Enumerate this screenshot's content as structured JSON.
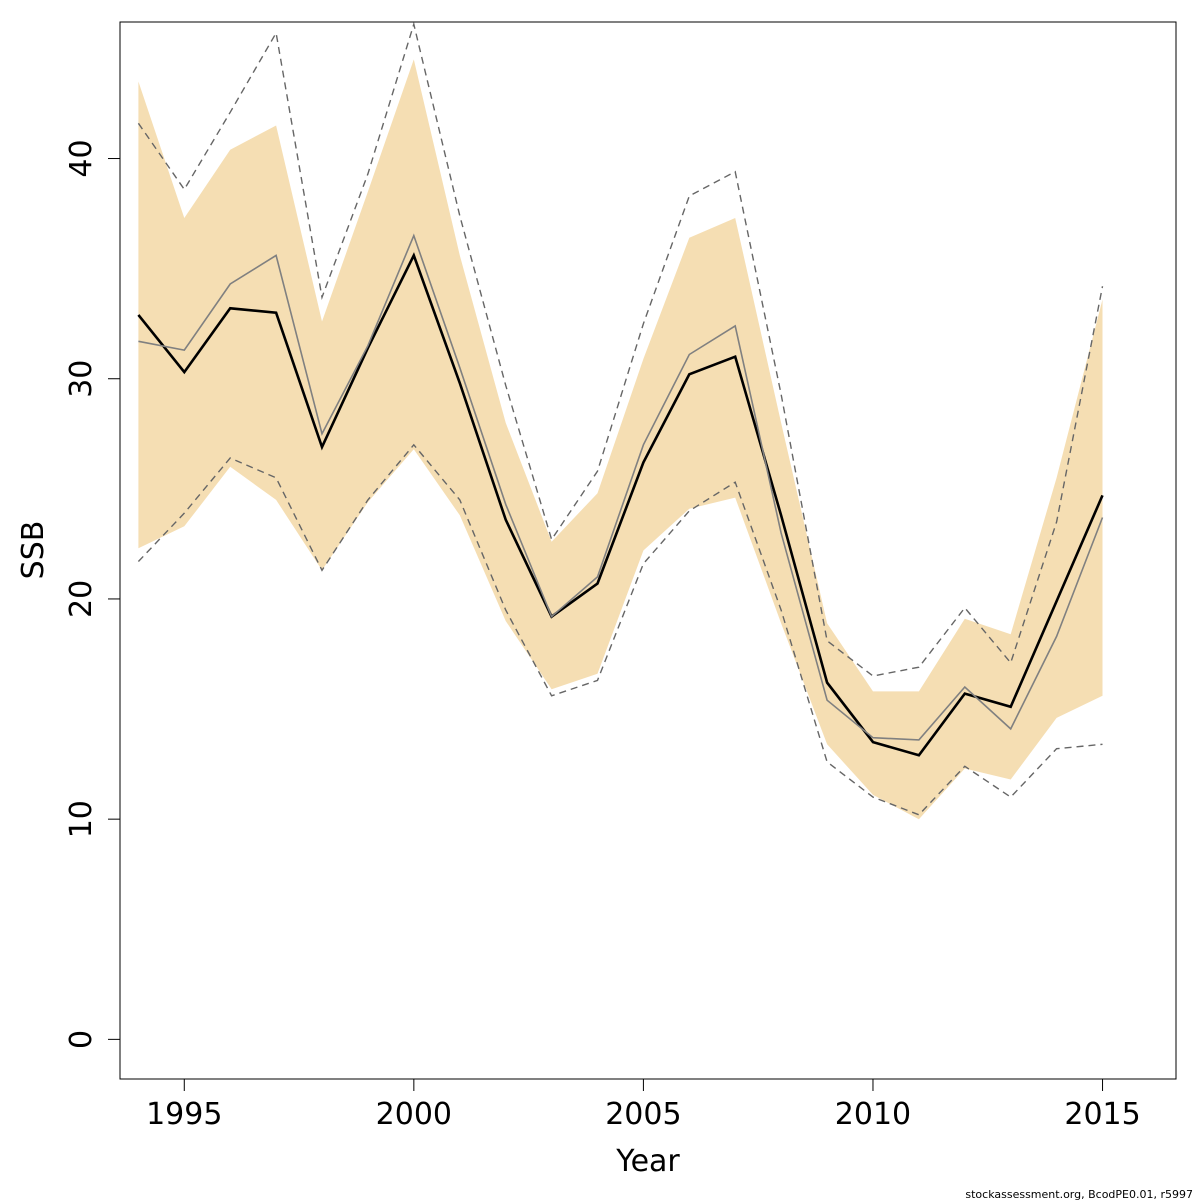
{
  "chart_data": {
    "type": "line",
    "title": "",
    "xlabel": "Year",
    "ylabel": "SSB",
    "xlim": [
      1993.6,
      2016.6
    ],
    "ylim": [
      -1.8,
      46.2
    ],
    "x_ticks": [
      1995,
      2000,
      2005,
      2010,
      2015
    ],
    "y_ticks": [
      0,
      10,
      20,
      30,
      40
    ],
    "grid": false,
    "legend": "none",
    "colors": {
      "band": "#F5DEB3",
      "main_line": "#000000",
      "secondary_line": "#808080",
      "dashed_line": "#666666"
    },
    "x": [
      1994,
      1995,
      1996,
      1997,
      1998,
      1999,
      2000,
      2001,
      2002,
      2003,
      2004,
      2005,
      2006,
      2007,
      2008,
      2009,
      2010,
      2011,
      2012,
      2013,
      2014,
      2015
    ],
    "band": {
      "upper": [
        43.5,
        37.3,
        40.4,
        41.5,
        32.6,
        38.5,
        44.5,
        35.6,
        28.0,
        22.6,
        24.8,
        30.9,
        36.4,
        37.3,
        28.0,
        18.9,
        15.8,
        15.8,
        19.1,
        18.4,
        25.5,
        33.6
      ],
      "lower": [
        22.3,
        23.3,
        26.0,
        24.5,
        21.3,
        24.4,
        26.8,
        23.8,
        19.0,
        15.9,
        16.6,
        22.2,
        24.1,
        24.6,
        18.9,
        13.4,
        11.1,
        10.0,
        12.3,
        11.8,
        14.6,
        15.6
      ]
    },
    "series": [
      {
        "style": "solid-thick",
        "values": [
          32.9,
          30.3,
          33.2,
          33.0,
          26.9,
          31.4,
          35.6,
          29.8,
          23.6,
          19.2,
          20.7,
          26.2,
          30.2,
          31.0,
          23.8,
          16.2,
          13.5,
          12.9,
          15.7,
          15.1,
          19.9,
          24.7
        ]
      },
      {
        "style": "solid-thin",
        "values": [
          31.7,
          31.3,
          34.3,
          35.6,
          27.5,
          31.5,
          36.5,
          30.5,
          24.3,
          19.2,
          21.0,
          27.0,
          31.1,
          32.4,
          23.0,
          15.4,
          13.7,
          13.6,
          16.0,
          14.1,
          18.3,
          23.7
        ]
      },
      {
        "style": "dashed",
        "values": [
          41.6,
          38.6,
          42.1,
          45.7,
          33.7,
          39.3,
          46.1,
          37.4,
          29.7,
          22.7,
          25.8,
          32.5,
          38.3,
          39.4,
          29.3,
          18.1,
          16.5,
          16.9,
          19.6,
          17.1,
          23.5,
          34.2
        ]
      },
      {
        "style": "dashed",
        "values": [
          21.7,
          23.9,
          26.4,
          25.5,
          21.3,
          24.5,
          27.0,
          24.5,
          19.5,
          15.6,
          16.3,
          21.6,
          24.0,
          25.3,
          19.5,
          12.6,
          11.0,
          10.2,
          12.4,
          11.0,
          13.2,
          13.4
        ]
      }
    ],
    "footer": "stockassessment.org, BcodPE0.01, r5997"
  }
}
